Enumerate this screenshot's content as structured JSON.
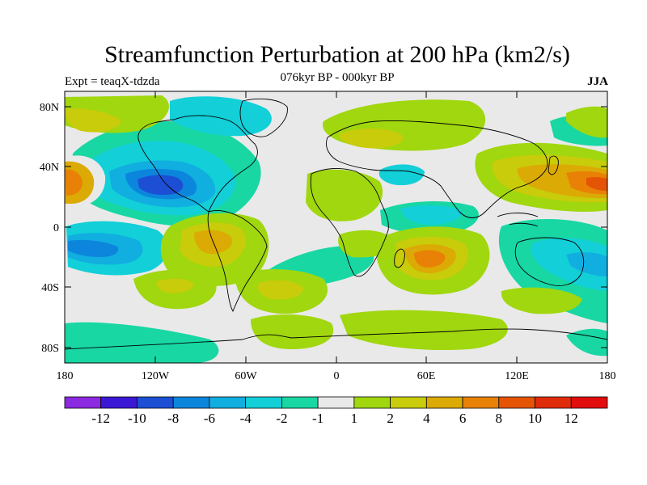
{
  "title": "Streamfunction Perturbation at 200 hPa (km2/s)",
  "left_subtitle": "Expt = teaqX-tdzda",
  "center_subtitle": "076kyr BP - 000kyr BP",
  "right_subtitle": "JJA",
  "y_ticks": [
    "80N",
    "40N",
    "0",
    "40S",
    "80S"
  ],
  "x_ticks": [
    "180",
    "120W",
    "60W",
    "0",
    "60E",
    "120E",
    "180"
  ],
  "colorbar": {
    "labels": [
      "-12",
      "-10",
      "-8",
      "-6",
      "-4",
      "-2",
      "-1",
      "1",
      "2",
      "4",
      "6",
      "8",
      "10",
      "12"
    ],
    "colors": [
      "#8b2ae0",
      "#3b18d6",
      "#1c4fd4",
      "#0c86dc",
      "#11aee0",
      "#12cfd8",
      "#18d7a3",
      "#e9e9e9",
      "#a0d70f",
      "#c8cc0a",
      "#dcaa05",
      "#e88106",
      "#e45404",
      "#e02b0b",
      "#e10c0c"
    ]
  }
}
